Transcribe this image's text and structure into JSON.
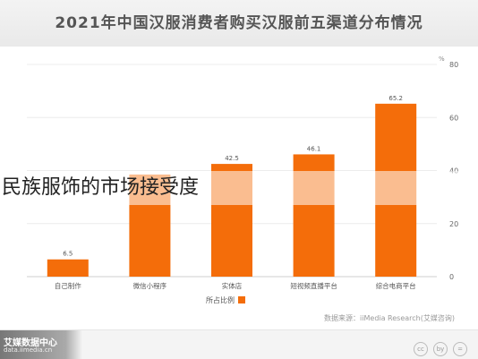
{
  "header": {
    "title": "2021年中国汉服消费者购买汉服前五渠道分布情况"
  },
  "overlay": {
    "caption": "民族服饰的市场接受度"
  },
  "chart_data": {
    "type": "bar",
    "categories": [
      "综合电商平台",
      "短视频直播平台",
      "实体店",
      "微信小程序",
      "自己制作"
    ],
    "display_order": [
      "自己制作",
      "微信小程序",
      "实体店",
      "短视频直播平台",
      "综合电商平台"
    ],
    "values": [
      65.2,
      46.1,
      42.5,
      38.5,
      6.5
    ],
    "value_labels": [
      "65.2",
      "46.1",
      "42.5",
      "",
      "6.5"
    ],
    "series": [
      {
        "name": "所占比例",
        "values": [
          65.2,
          46.1,
          42.5,
          38.5,
          6.5
        ]
      }
    ],
    "ylabel": "%",
    "ylim": [
      0,
      80
    ],
    "yticks": [
      "0",
      "20",
      "40",
      "60",
      "80"
    ],
    "y_axis_side": "right",
    "grid": true,
    "legend_position": "bottom-center",
    "bar_color": "#f46d0a"
  },
  "source": {
    "text": "数据来源：iiMedia Research(艾媒咨询)"
  },
  "footer": {
    "brand": "艾媒数据中心",
    "domain": "data.iimedia.cn"
  }
}
